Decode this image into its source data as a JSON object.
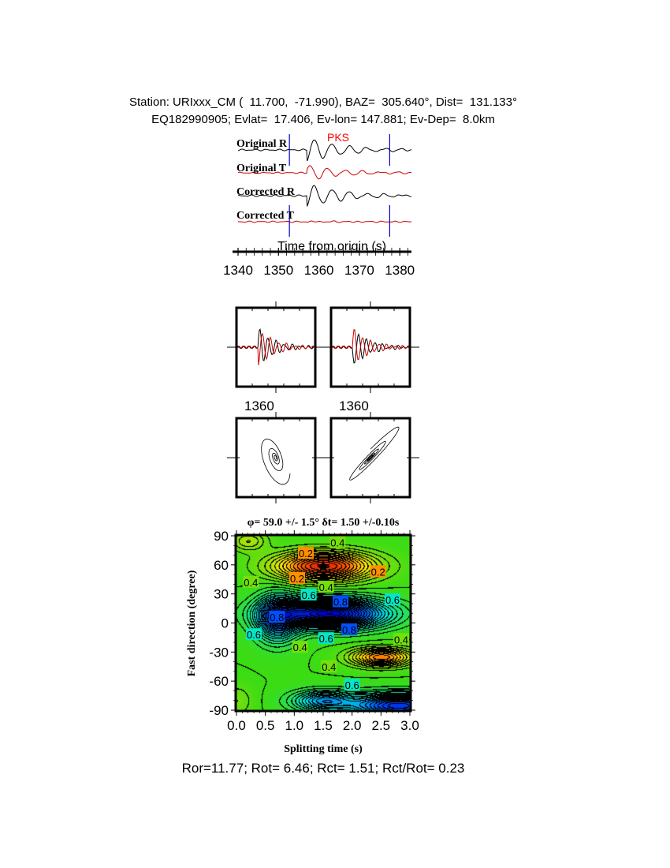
{
  "header": {
    "line1": "Station: URIxxx_CM (  11.700,  -71.990), BAZ=  305.640°, Dist=  131.133°",
    "line2": "EQ182990905; Evlat=  17.406, Ev-lon= 147.881; Ev-Dep=  8.0km"
  },
  "chart_data": [
    {
      "type": "line",
      "panel": "seismograms",
      "trace_labels": [
        "Original R",
        "Original T",
        "Corrected R",
        "Corrected T"
      ],
      "phase_label": "PKS",
      "window_marks_s": [
        1352.7,
        1377.5
      ],
      "xlabel": "Time from origin (s)",
      "xlim": [
        1340,
        1383
      ],
      "xticks": [
        "1340",
        "1350",
        "1360",
        "1370",
        "1380"
      ],
      "colors": {
        "radial": "#000000",
        "transverse": "#cc0000",
        "window": "#0000cc",
        "phase": "#ff0000"
      }
    },
    {
      "type": "line",
      "panel": "waveform-comparison",
      "tick_labels": [
        "1360",
        "1360"
      ]
    },
    {
      "type": "line",
      "panel": "particle-motion"
    },
    {
      "type": "heatmap",
      "panel": "grid-search",
      "title": "φ= 59.0 +/- 1.5° δt= 1.50 +/-0.10s",
      "xlabel": "Splitting time (s)",
      "ylabel": "Fast direction (degree)",
      "xlim": [
        0,
        3
      ],
      "ylim": [
        -90,
        90
      ],
      "xticks": [
        "0.0",
        "0.5",
        "1.0",
        "1.5",
        "2.0",
        "2.5",
        "3.0"
      ],
      "yticks": [
        "90",
        "60",
        "30",
        "0",
        "-30",
        "-60",
        "-90"
      ],
      "best": {
        "dt": 1.5,
        "phi": 59.0
      },
      "contour_labels": [
        {
          "text": "0.2",
          "x": 1.2,
          "y": 72
        },
        {
          "text": "0.4",
          "x": 1.75,
          "y": 83
        },
        {
          "text": "0.2",
          "x": 1.05,
          "y": 46
        },
        {
          "text": "0.2",
          "x": 2.45,
          "y": 53
        },
        {
          "text": "0.4",
          "x": 0.25,
          "y": 42
        },
        {
          "text": "0.4",
          "x": 1.55,
          "y": 37
        },
        {
          "text": "0.6",
          "x": 1.25,
          "y": 29
        },
        {
          "text": "0.8",
          "x": 1.8,
          "y": 22
        },
        {
          "text": "0.6",
          "x": 2.7,
          "y": 24
        },
        {
          "text": "0.8",
          "x": 0.7,
          "y": 6
        },
        {
          "text": "0.6",
          "x": 0.3,
          "y": -12
        },
        {
          "text": "0.8",
          "x": 1.95,
          "y": -7
        },
        {
          "text": "0.6",
          "x": 1.55,
          "y": -16
        },
        {
          "text": "0.4",
          "x": 2.85,
          "y": -17
        },
        {
          "text": "0.4",
          "x": 1.1,
          "y": -25
        },
        {
          "text": "0.4",
          "x": 1.6,
          "y": -45
        },
        {
          "text": "0.6",
          "x": 2.0,
          "y": -64
        }
      ]
    }
  ],
  "footer": "Ror=11.77; Rot= 6.46; Rct= 1.51; Rct/Rot= 0.23"
}
